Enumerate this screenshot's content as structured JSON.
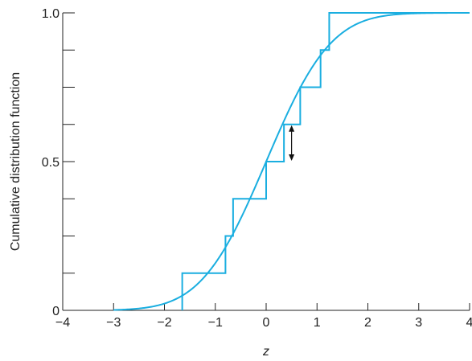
{
  "chart_data": {
    "type": "line",
    "title": "",
    "xlabel": "z",
    "ylabel": "Cumulative distribution function",
    "xlim": [
      -4,
      4
    ],
    "ylim": [
      0,
      1
    ],
    "grid": false,
    "x_ticks": [
      -4,
      -3,
      -2,
      -1,
      0,
      1,
      2,
      3,
      4
    ],
    "x_tick_labels": [
      "−4",
      "−3",
      "−2",
      "−1",
      "0",
      "1",
      "2",
      "3",
      "4"
    ],
    "y_ticks": [
      0,
      0.5,
      1.0
    ],
    "y_tick_labels": [
      "0",
      "0.5",
      "1.0"
    ],
    "y_minor_ticks": [
      0.125,
      0.25,
      0.375,
      0.625,
      0.75,
      0.875
    ],
    "series": [
      {
        "kind": "smooth",
        "distribution": "standard normal CDF",
        "x_range": [
          -3,
          4
        ]
      },
      {
        "kind": "step",
        "x": [
          -1.65,
          -0.8,
          -0.65,
          0.0,
          0.35,
          0.67,
          1.07,
          1.24
        ],
        "y": [
          0.125,
          0.25,
          0.375,
          0.5,
          0.625,
          0.75,
          0.875,
          1.0
        ],
        "x_end": 4
      }
    ],
    "annotations": [
      {
        "type": "double-arrow",
        "x": 0.5,
        "y_from": 0.625,
        "y_to": 0.5
      }
    ],
    "colors": {
      "series": "#1aaee0",
      "axis": "#222222",
      "arrow": "#111111"
    }
  }
}
